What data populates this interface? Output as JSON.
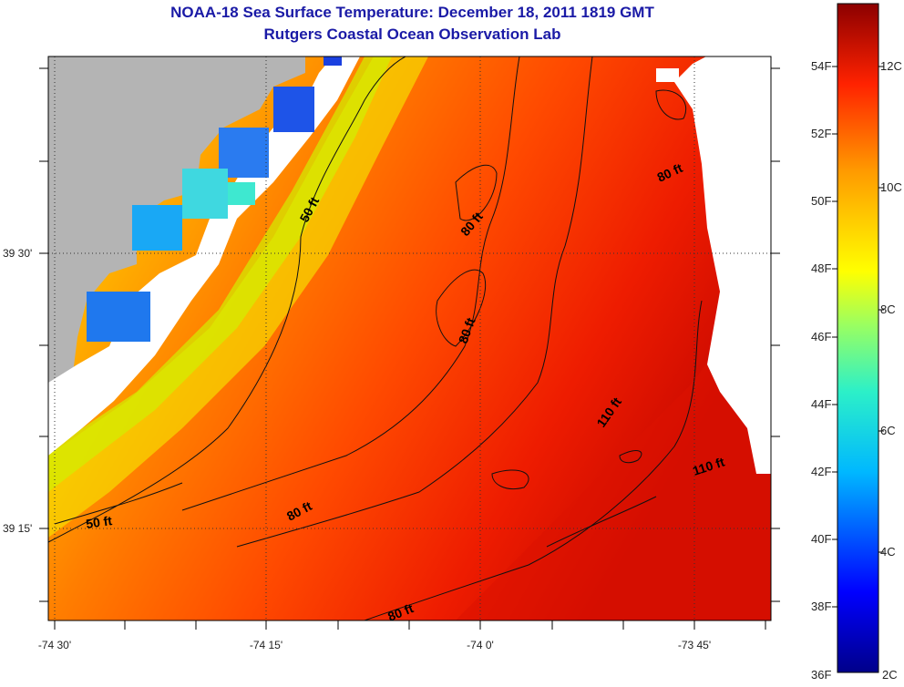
{
  "title": {
    "line1": "NOAA-18 Sea Surface Temperature:  December 18, 2011 1819 GMT",
    "line2": "Rutgers Coastal Ocean Observation Lab"
  },
  "axes": {
    "lon_ticks": [
      "-74 30'",
      "-74 15'",
      "-74 0'",
      "-73 45'"
    ],
    "lat_ticks": [
      "39 30'",
      "39 15'"
    ]
  },
  "contour_labels": [
    {
      "text": "50 ft",
      "id": "c50a"
    },
    {
      "text": "50 ft",
      "id": "c50b"
    },
    {
      "text": "80 ft",
      "id": "c80a"
    },
    {
      "text": "80 ft",
      "id": "c80b"
    },
    {
      "text": "80 ft",
      "id": "c80c"
    },
    {
      "text": "80 ft",
      "id": "c80d"
    },
    {
      "text": "80 ft",
      "id": "c80e"
    },
    {
      "text": "110 ft",
      "id": "c110a"
    },
    {
      "text": "110 ft",
      "id": "c110b"
    }
  ],
  "colorbar": {
    "fahrenheit": [
      "54F",
      "52F",
      "50F",
      "48F",
      "46F",
      "44F",
      "42F",
      "40F",
      "38F",
      "36F"
    ],
    "celsius": [
      "12C",
      "10C",
      "8C",
      "6C",
      "4C",
      "2C"
    ]
  },
  "colors": {
    "title": "#1a1aa6",
    "land": "#b4b4b4",
    "nodata": "#ffffff"
  }
}
